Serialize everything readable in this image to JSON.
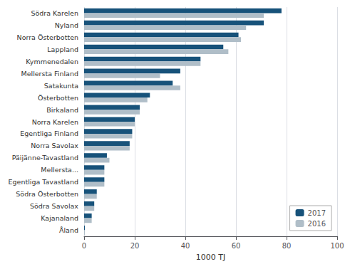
{
  "chart_data": {
    "type": "bar",
    "orientation": "horizontal",
    "categories": [
      "Södra Karelen",
      "Nyland",
      "Norra Österbotten",
      "Lappland",
      "Kymmenedalen",
      "Mellersta Finland",
      "Satakunta",
      "Österbotten",
      "Birkaland",
      "Norra Karelen",
      "Egentliga Finland",
      "Norra Savolax",
      "Päijänne-Tavastland",
      "Mellersta...",
      "Egentliga Tavastland",
      "Södra Österbotten",
      "Södra Savolax",
      "Kajanaland",
      "Åland"
    ],
    "series": [
      {
        "name": "2017",
        "color": "#17527a",
        "values": [
          78,
          71,
          61,
          55,
          46,
          38,
          35,
          26,
          22,
          20,
          19,
          18,
          9,
          8,
          8,
          5,
          4,
          3,
          0.3
        ]
      },
      {
        "name": "2016",
        "color": "#b0bec8",
        "values": [
          71,
          64,
          62,
          57,
          46,
          30,
          38,
          25,
          22,
          20,
          19,
          18,
          10,
          8,
          8,
          5,
          4,
          3,
          0.3
        ]
      }
    ],
    "xlabel": "1000 TJ",
    "xlim": [
      0,
      100
    ],
    "xticks": [
      0,
      20,
      40,
      60,
      80,
      100
    ],
    "grid": true,
    "legend": "lower right"
  }
}
